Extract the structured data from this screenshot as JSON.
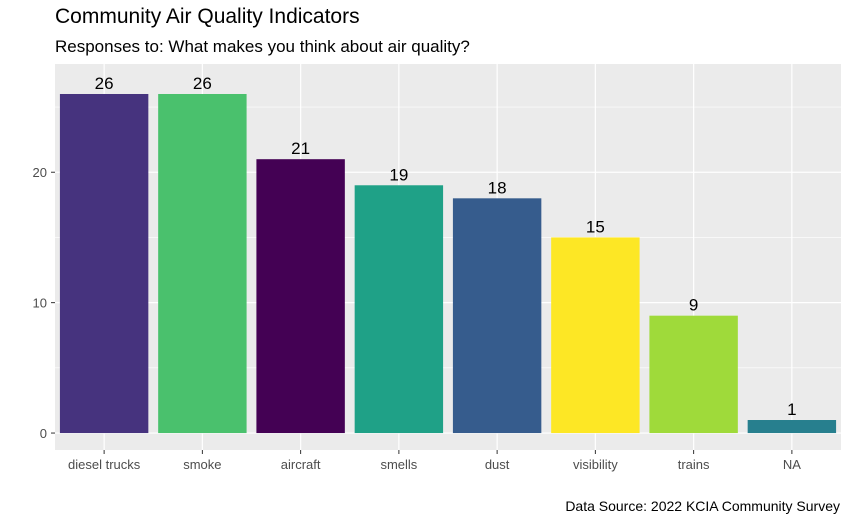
{
  "chart_data": {
    "type": "bar",
    "title": "Community Air Quality Indicators",
    "subtitle": "Responses to: What makes you think about air quality?",
    "caption": "Data Source: 2022 KCIA Community Survey",
    "xlabel": "",
    "ylabel": "",
    "categories": [
      "diesel trucks",
      "smoke",
      "aircraft",
      "smells",
      "dust",
      "visibility",
      "trains",
      "NA"
    ],
    "values": [
      26,
      26,
      21,
      19,
      18,
      15,
      9,
      1
    ],
    "colors": [
      "#46337E",
      "#4AC16D",
      "#440154",
      "#1FA187",
      "#365C8D",
      "#FDE725",
      "#9FDA3A",
      "#277F8E"
    ],
    "yticks": [
      0,
      10,
      20
    ],
    "ylim": [
      -1.3,
      28.3
    ],
    "grid": true,
    "panel_background": "#EBEBEB",
    "grid_color": "#FFFFFF"
  }
}
